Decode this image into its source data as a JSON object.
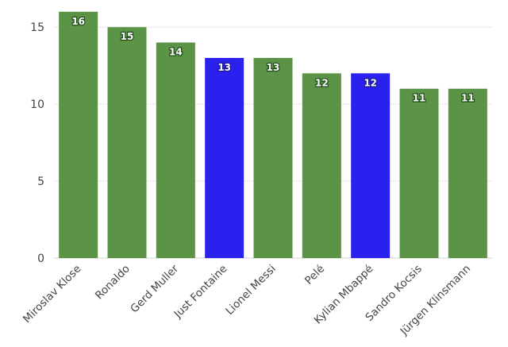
{
  "chart_data": {
    "type": "bar",
    "categories": [
      "Miroslav Klose",
      "Ronaldo",
      "Gerd Muller",
      "Just Fontaine",
      "Lionel Messi",
      "Pelé",
      "Kylian Mbappé",
      "Sandro Kocsis",
      "Jürgen Klinsmann"
    ],
    "values": [
      16,
      15,
      14,
      13,
      13,
      12,
      12,
      11,
      11
    ],
    "highlighted": [
      false,
      false,
      false,
      true,
      false,
      false,
      true,
      false,
      false
    ],
    "colors": {
      "default": "#5b9447",
      "highlight": "#2b21ee"
    },
    "ylim": [
      0,
      16
    ],
    "yticks": [
      0,
      5,
      10,
      15
    ],
    "ytick_labels": [
      "0",
      "5",
      "10",
      "15"
    ],
    "title": "",
    "xlabel": "",
    "ylabel": "",
    "grid": true,
    "legend": "none"
  }
}
